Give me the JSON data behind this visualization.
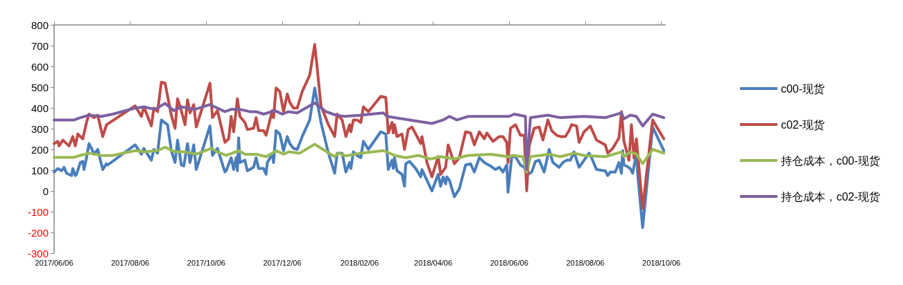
{
  "chart_data": {
    "type": "line",
    "xlim": [
      "2017-06-06",
      "2018-10-09"
    ],
    "xticks": [
      {
        "value": "2017-06-06",
        "label": "2017/06/06"
      },
      {
        "value": "2017-08-06",
        "label": "2017/08/06"
      },
      {
        "value": "2017-10-06",
        "label": "2017/10/06"
      },
      {
        "value": "2017-12-06",
        "label": "2017/12/06"
      },
      {
        "value": "2018-02-06",
        "label": "2018/02/06"
      },
      {
        "value": "2018-04-06",
        "label": "2018/04/06"
      },
      {
        "value": "2018-06-06",
        "label": "2018/06/06"
      },
      {
        "value": "2018-08-06",
        "label": "2018/08/06"
      },
      {
        "value": "2018-10-06",
        "label": "2018/10/06"
      }
    ],
    "ylim": [
      -300,
      800
    ],
    "yticks": [
      -300,
      -200,
      -100,
      0,
      100,
      200,
      300,
      400,
      500,
      600,
      700,
      800
    ],
    "grid": false,
    "legend": "right",
    "marker": "none",
    "line_style": "solid",
    "series": [
      {
        "name": "c00-现货",
        "color": "#4a7ebb",
        "x": [
          "2017-06-06",
          "2017-06-09",
          "2017-06-12",
          "2017-06-14",
          "2017-06-16",
          "2017-06-20",
          "2017-06-21",
          "2017-06-23",
          "2017-06-24",
          "2017-06-27",
          "2017-06-29",
          "2017-06-30",
          "2017-07-02",
          "2017-07-04",
          "2017-07-06",
          "2017-07-08",
          "2017-07-11",
          "2017-07-15",
          "2017-07-18",
          "2017-07-19",
          "2017-08-10",
          "2017-08-15",
          "2017-08-17",
          "2017-08-23",
          "2017-08-25",
          "2017-08-28",
          "2017-08-31",
          "2017-09-05",
          "2017-09-08",
          "2017-09-11",
          "2017-09-13",
          "2017-09-16",
          "2017-09-18",
          "2017-09-21",
          "2017-09-23",
          "2017-09-26",
          "2017-09-28",
          "2017-10-09",
          "2017-10-11",
          "2017-10-15",
          "2017-10-21",
          "2017-10-22",
          "2017-10-26",
          "2017-10-28",
          "2017-10-30",
          "2017-10-31",
          "2017-11-01",
          "2017-11-02",
          "2017-11-06",
          "2017-11-08",
          "2017-11-13",
          "2017-11-15",
          "2017-11-17",
          "2017-11-21",
          "2017-11-23",
          "2017-11-24",
          "2017-11-28",
          "2017-11-29",
          "2017-12-01",
          "2017-12-04",
          "2017-12-07",
          "2017-12-10",
          "2017-12-12",
          "2017-12-15",
          "2017-12-18",
          "2017-12-22",
          "2017-12-28",
          "2018-01-01",
          "2018-01-06",
          "2018-01-12",
          "2018-01-17",
          "2018-01-19",
          "2018-01-23",
          "2018-01-26",
          "2018-01-29",
          "2018-01-30",
          "2018-02-01",
          "2018-02-04",
          "2018-02-07",
          "2018-02-09",
          "2018-02-13",
          "2018-02-23",
          "2018-02-27",
          "2018-03-01",
          "2018-03-04",
          "2018-03-05",
          "2018-03-06",
          "2018-03-08",
          "2018-03-12",
          "2018-03-14",
          "2018-03-15",
          "2018-03-18",
          "2018-03-23",
          "2018-03-27",
          "2018-03-28",
          "2018-04-01",
          "2018-04-05",
          "2018-04-10",
          "2018-04-12",
          "2018-04-14",
          "2018-04-16",
          "2018-04-17",
          "2018-04-19",
          "2018-04-23",
          "2018-04-27",
          "2018-05-02",
          "2018-05-06",
          "2018-05-09",
          "2018-05-13",
          "2018-05-17",
          "2018-05-22",
          "2018-05-26",
          "2018-05-29",
          "2018-06-01",
          "2018-06-04",
          "2018-06-05",
          "2018-06-08",
          "2018-06-11",
          "2018-06-15",
          "2018-06-18",
          "2018-06-21",
          "2018-06-24",
          "2018-06-27",
          "2018-06-30",
          "2018-07-04",
          "2018-07-08",
          "2018-07-11",
          "2018-07-16",
          "2018-07-19",
          "2018-07-22",
          "2018-07-25",
          "2018-07-28",
          "2018-08-01",
          "2018-08-09",
          "2018-08-11",
          "2018-08-15",
          "2018-08-22",
          "2018-08-24",
          "2018-08-26",
          "2018-08-30",
          "2018-09-02",
          "2018-09-04",
          "2018-09-05",
          "2018-09-06",
          "2018-09-08",
          "2018-09-11",
          "2018-09-13",
          "2018-09-16",
          "2018-09-17",
          "2018-09-21",
          "2018-09-29",
          "2018-10-08"
        ],
        "values": [
          91,
          108,
          97,
          114,
          85,
          74,
          108,
          74,
          80,
          137,
          142,
          103,
          160,
          228,
          205,
          177,
          200,
          103,
          131,
          125,
          222,
          177,
          205,
          148,
          200,
          182,
          342,
          319,
          194,
          137,
          245,
          125,
          120,
          228,
          137,
          222,
          103,
          313,
          171,
          205,
          91,
          97,
          160,
          103,
          160,
          97,
          256,
          137,
          148,
          97,
          114,
          160,
          108,
          108,
          80,
          137,
          177,
          137,
          291,
          274,
          194,
          262,
          228,
          205,
          200,
          262,
          342,
          496,
          330,
          182,
          85,
          182,
          182,
          91,
          137,
          108,
          188,
          171,
          160,
          239,
          200,
          285,
          274,
          103,
          148,
          108,
          160,
          97,
          80,
          23,
          131,
          142,
          108,
          68,
          103,
          51,
          0,
          80,
          23,
          68,
          34,
          68,
          51,
          -28,
          11,
          125,
          131,
          91,
          160,
          137,
          120,
          103,
          114,
          91,
          125,
          -6,
          165,
          165,
          125,
          114,
          80,
          91,
          142,
          148,
          91,
          200,
          137,
          114,
          137,
          148,
          148,
          188,
          114,
          182,
          160,
          103,
          97,
          74,
          91,
          91,
          137,
          85,
          194,
          125,
          120,
          108,
          85,
          182,
          80,
          -177,
          308,
          194
        ]
      },
      {
        "name": "c02-现货",
        "color": "#be4b48",
        "x": [
          "2017-06-06",
          "2017-06-09",
          "2017-06-10",
          "2017-06-13",
          "2017-06-16",
          "2017-06-18",
          "2017-06-21",
          "2017-06-23",
          "2017-06-25",
          "2017-06-29",
          "2017-07-02",
          "2017-07-04",
          "2017-07-08",
          "2017-07-11",
          "2017-07-15",
          "2017-07-18",
          "2017-08-10",
          "2017-08-15",
          "2017-08-17",
          "2017-08-23",
          "2017-08-25",
          "2017-08-28",
          "2017-08-31",
          "2017-09-03",
          "2017-09-08",
          "2017-09-11",
          "2017-09-13",
          "2017-09-16",
          "2017-09-19",
          "2017-09-21",
          "2017-09-23",
          "2017-09-26",
          "2017-09-28",
          "2017-10-09",
          "2017-10-11",
          "2017-10-15",
          "2017-10-21",
          "2017-10-24",
          "2017-10-26",
          "2017-10-28",
          "2017-10-31",
          "2017-11-02",
          "2017-11-06",
          "2017-11-08",
          "2017-11-13",
          "2017-11-15",
          "2017-11-17",
          "2017-11-21",
          "2017-11-23",
          "2017-11-28",
          "2017-11-29",
          "2017-12-01",
          "2017-12-04",
          "2017-12-07",
          "2017-12-10",
          "2017-12-12",
          "2017-12-15",
          "2017-12-18",
          "2017-12-22",
          "2017-12-28",
          "2018-01-01",
          "2018-01-03",
          "2018-01-06",
          "2018-01-12",
          "2018-01-17",
          "2018-01-19",
          "2018-01-23",
          "2018-01-26",
          "2018-01-29",
          "2018-01-30",
          "2018-02-01",
          "2018-02-04",
          "2018-02-07",
          "2018-02-09",
          "2018-02-13",
          "2018-02-23",
          "2018-02-27",
          "2018-03-01",
          "2018-03-04",
          "2018-03-05",
          "2018-03-06",
          "2018-03-08",
          "2018-03-12",
          "2018-03-14",
          "2018-03-17",
          "2018-03-20",
          "2018-03-23",
          "2018-03-27",
          "2018-03-28",
          "2018-04-01",
          "2018-04-05",
          "2018-04-10",
          "2018-04-12",
          "2018-04-16",
          "2018-04-18",
          "2018-04-23",
          "2018-04-27",
          "2018-05-02",
          "2018-05-06",
          "2018-05-09",
          "2018-05-13",
          "2018-05-17",
          "2018-05-19",
          "2018-05-24",
          "2018-05-29",
          "2018-06-01",
          "2018-06-04",
          "2018-06-05",
          "2018-06-07",
          "2018-06-11",
          "2018-06-15",
          "2018-06-18",
          "2018-06-20",
          "2018-06-22",
          "2018-06-26",
          "2018-06-30",
          "2018-07-03",
          "2018-07-07",
          "2018-07-10",
          "2018-07-14",
          "2018-07-17",
          "2018-07-21",
          "2018-07-24",
          "2018-07-26",
          "2018-07-30",
          "2018-08-01",
          "2018-08-05",
          "2018-08-10",
          "2018-08-15",
          "2018-08-22",
          "2018-08-24",
          "2018-08-28",
          "2018-09-02",
          "2018-09-04",
          "2018-09-06",
          "2018-09-10",
          "2018-09-12",
          "2018-09-14",
          "2018-09-16",
          "2018-09-17",
          "2018-09-21",
          "2018-09-29",
          "2018-10-08"
        ],
        "values": [
          228,
          239,
          217,
          245,
          228,
          217,
          262,
          217,
          274,
          251,
          330,
          370,
          353,
          365,
          262,
          319,
          410,
          359,
          405,
          313,
          399,
          382,
          524,
          519,
          365,
          302,
          444,
          387,
          319,
          439,
          376,
          416,
          308,
          519,
          353,
          387,
          234,
          251,
          359,
          285,
          444,
          359,
          330,
          296,
          302,
          353,
          291,
          291,
          268,
          387,
          353,
          496,
          479,
          382,
          467,
          427,
          399,
          399,
          479,
          558,
          706,
          592,
          410,
          319,
          262,
          370,
          342,
          262,
          319,
          285,
          342,
          342,
          330,
          405,
          382,
          456,
          450,
          279,
          330,
          279,
          319,
          262,
          274,
          200,
          296,
          308,
          274,
          228,
          262,
          137,
          68,
          165,
          80,
          114,
          222,
          131,
          160,
          285,
          279,
          222,
          285,
          251,
          279,
          239,
          262,
          262,
          234,
          137,
          302,
          319,
          268,
          268,
          0,
          217,
          302,
          308,
          245,
          342,
          291,
          268,
          262,
          262,
          291,
          319,
          313,
          234,
          285,
          313,
          245,
          222,
          182,
          205,
          256,
          382,
          239,
          148,
          319,
          160,
          251,
          182,
          -85,
          342,
          251
        ]
      },
      {
        "name": "持仓成本，c00-现货",
        "color": "#98b954",
        "x": [
          "2017-06-06",
          "2017-06-22",
          "2017-06-27",
          "2017-07-04",
          "2017-07-14",
          "2017-07-23",
          "2017-08-10",
          "2017-08-17",
          "2017-08-28",
          "2017-09-03",
          "2017-09-11",
          "2017-09-19",
          "2017-09-28",
          "2017-10-10",
          "2017-10-15",
          "2017-10-22",
          "2017-11-01",
          "2017-11-06",
          "2017-11-15",
          "2017-11-23",
          "2017-11-28",
          "2017-12-01",
          "2017-12-07",
          "2017-12-11",
          "2017-12-20",
          "2018-01-01",
          "2018-01-17",
          "2018-01-20",
          "2018-01-26",
          "2018-02-07",
          "2018-02-25",
          "2018-02-28",
          "2018-03-06",
          "2018-03-15",
          "2018-03-25",
          "2018-04-04",
          "2018-04-12",
          "2018-04-23",
          "2018-05-04",
          "2018-05-22",
          "2018-06-05",
          "2018-06-09",
          "2018-06-17",
          "2018-06-20",
          "2018-06-23",
          "2018-07-08",
          "2018-07-17",
          "2018-07-28",
          "2018-08-05",
          "2018-08-22",
          "2018-09-04",
          "2018-09-06",
          "2018-09-11",
          "2018-09-16",
          "2018-09-21",
          "2018-09-29",
          "2018-10-08"
        ],
        "values": [
          162,
          162,
          171,
          182,
          171,
          171,
          194,
          188,
          194,
          211,
          188,
          188,
          177,
          205,
          188,
          171,
          194,
          177,
          177,
          165,
          182,
          194,
          177,
          188,
          182,
          225,
          165,
          182,
          169,
          182,
          194,
          188,
          171,
          160,
          171,
          154,
          165,
          154,
          171,
          177,
          165,
          171,
          165,
          91,
          165,
          177,
          165,
          182,
          171,
          165,
          188,
          165,
          188,
          177,
          131,
          200,
          182
        ]
      },
      {
        "name": "持仓成本，c02-现货",
        "color": "#7d60a0",
        "x": [
          "2017-06-06",
          "2017-06-16",
          "2017-06-22",
          "2017-06-27",
          "2017-07-04",
          "2017-07-14",
          "2017-07-23",
          "2017-08-10",
          "2017-08-17",
          "2017-08-26",
          "2017-09-03",
          "2017-09-10",
          "2017-09-16",
          "2017-09-27",
          "2017-10-09",
          "2017-10-15",
          "2017-10-21",
          "2017-10-26",
          "2017-11-02",
          "2017-11-10",
          "2017-11-15",
          "2017-11-21",
          "2017-11-30",
          "2017-12-06",
          "2017-12-11",
          "2017-12-18",
          "2018-01-01",
          "2018-01-10",
          "2018-01-18",
          "2018-01-25",
          "2018-02-07",
          "2018-02-25",
          "2018-02-28",
          "2018-03-13",
          "2018-04-05",
          "2018-04-14",
          "2018-04-19",
          "2018-04-25",
          "2018-05-04",
          "2018-06-06",
          "2018-06-10",
          "2018-06-19",
          "2018-06-20",
          "2018-06-23",
          "2018-07-07",
          "2018-07-17",
          "2018-08-05",
          "2018-08-22",
          "2018-09-04",
          "2018-09-06",
          "2018-09-11",
          "2018-09-16",
          "2018-09-21",
          "2018-09-29",
          "2018-10-08"
        ],
        "values": [
          342,
          342,
          342,
          353,
          365,
          359,
          370,
          399,
          405,
          393,
          422,
          387,
          405,
          393,
          416,
          399,
          382,
          393,
          393,
          382,
          382,
          370,
          387,
          370,
          382,
          376,
          424,
          382,
          365,
          359,
          365,
          376,
          359,
          347,
          325,
          342,
          359,
          342,
          359,
          359,
          370,
          359,
          103,
          353,
          365,
          353,
          359,
          353,
          376,
          347,
          365,
          359,
          313,
          370,
          353
        ]
      }
    ]
  }
}
